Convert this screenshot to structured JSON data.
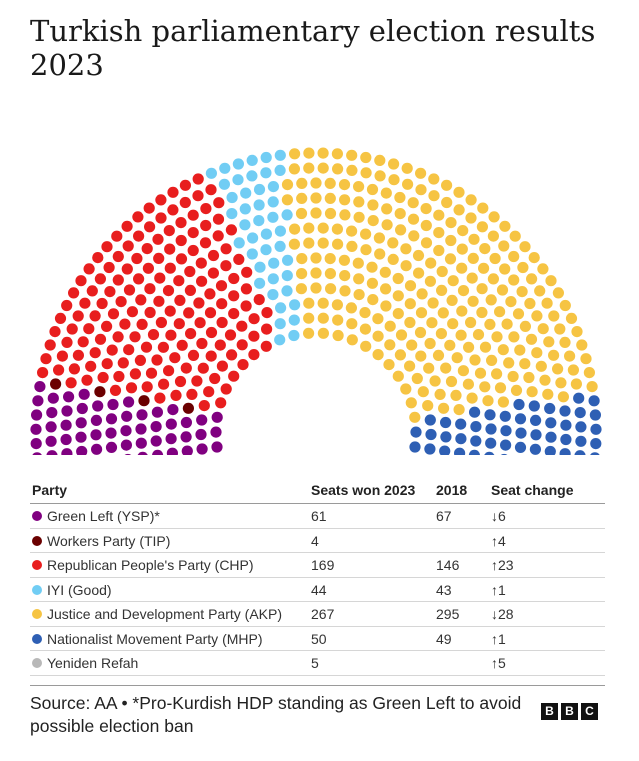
{
  "title": "Turkish parliamentary election results 2023",
  "table": {
    "headers": {
      "party": "Party",
      "seats_won": "Seats won 2023",
      "y2018": "2018",
      "change": "Seat change"
    },
    "rows": [
      {
        "party": "Green Left (YSP)*",
        "seats_won": "61",
        "y2018": "67",
        "change": "↓6",
        "color": "#800080"
      },
      {
        "party": "Workers Party (TIP)",
        "seats_won": "4",
        "y2018": "",
        "change": "↑4",
        "color": "#6b0000"
      },
      {
        "party": "Republican People's Party (CHP)",
        "seats_won": "169",
        "y2018": "146",
        "change": "↑23",
        "color": "#e81e1e"
      },
      {
        "party": "IYI (Good)",
        "seats_won": "44",
        "y2018": "43",
        "change": "↑1",
        "color": "#71cdf4"
      },
      {
        "party": "Justice and Development Party (AKP)",
        "seats_won": "267",
        "y2018": "295",
        "change": "↓28",
        "color": "#f6c443"
      },
      {
        "party": "Nationalist Movement Party (MHP)",
        "seats_won": "50",
        "y2018": "49",
        "change": "↑1",
        "color": "#2e5fb4"
      },
      {
        "party": "Yeniden Refah",
        "seats_won": "5",
        "y2018": "",
        "change": "↑5",
        "color": "#b8b8b8"
      }
    ]
  },
  "chart_data": {
    "type": "parliament",
    "series": [
      {
        "name": "Green Left (YSP)*",
        "value": 61,
        "color": "#800080"
      },
      {
        "name": "Workers Party (TIP)",
        "value": 4,
        "color": "#6b0000"
      },
      {
        "name": "Republican People's Party (CHP)",
        "value": 169,
        "color": "#e81e1e"
      },
      {
        "name": "IYI (Good)",
        "value": 44,
        "color": "#71cdf4"
      },
      {
        "name": "Justice and Development Party (AKP)",
        "value": 267,
        "color": "#f6c443"
      },
      {
        "name": "Nationalist Movement Party (MHP)",
        "value": 50,
        "color": "#2e5fb4"
      },
      {
        "name": "Yeniden Refah",
        "value": 5,
        "color": "#b8b8b8"
      }
    ]
  },
  "source": "Source: AA • *Pro-Kurdish HDP standing as Green Left to avoid possible election ban",
  "logo": "BBC"
}
